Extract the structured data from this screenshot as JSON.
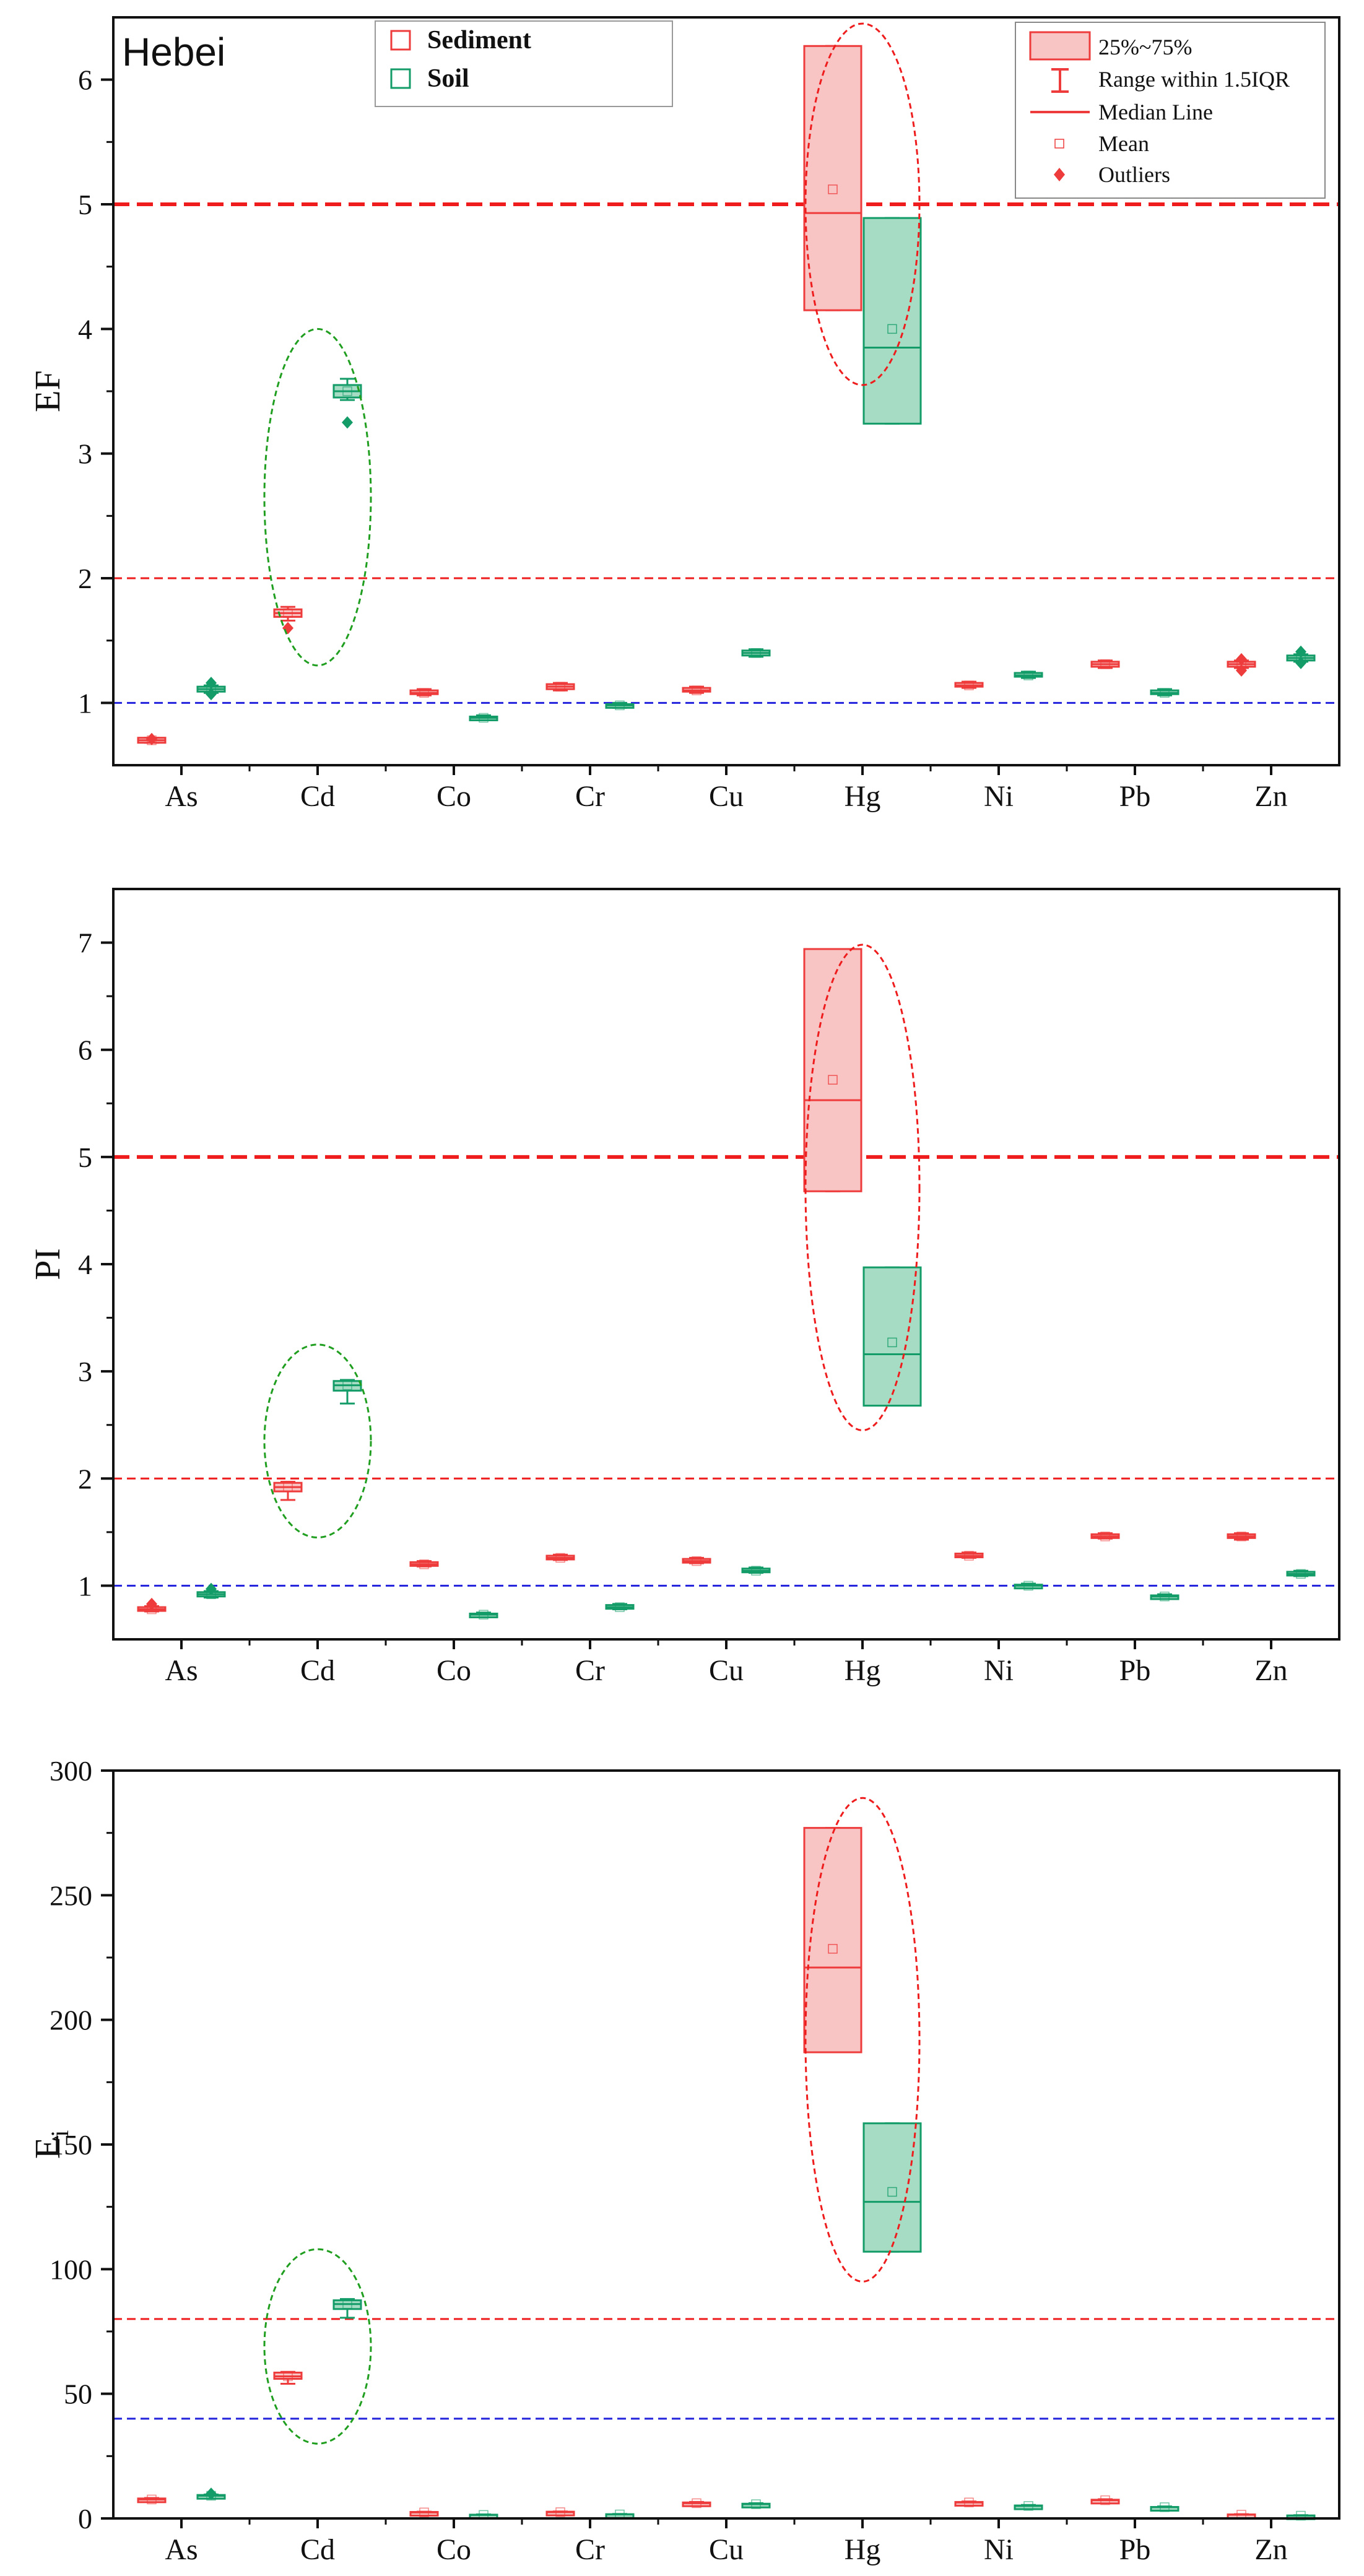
{
  "colors": {
    "sediment_line": "#ee3b3b",
    "sediment_fill": "#f8c4c4",
    "soil_line": "#139c68",
    "soil_fill": "#a6dcc3",
    "ref_red": "#ee1c1c",
    "ref_blue": "#2222dd",
    "ellipse_red": "#ee1c1c",
    "ellipse_green": "#1f9e1f",
    "axis": "#111111"
  },
  "legend_series": {
    "sediment": "Sediment",
    "soil": "Soil"
  },
  "legend_box": {
    "iqr": "25%~75%",
    "whisker": "Range within 1.5IQR",
    "median": "Median Line",
    "mean": "Mean",
    "outliers": "Outliers"
  },
  "chart_data": [
    {
      "type": "box",
      "panel_label": "Hebei",
      "ylabel": "EF",
      "categories": [
        "As",
        "Cd",
        "Co",
        "Cr",
        "Cu",
        "Hg",
        "Ni",
        "Pb",
        "Zn"
      ],
      "ylim": [
        0.5,
        6.5
      ],
      "yticks": [
        1,
        2,
        3,
        4,
        5,
        6
      ],
      "minor_ticks": true,
      "reference_lines": [
        {
          "y": 5,
          "color": "red",
          "style": "dashed-bold"
        },
        {
          "y": 2,
          "color": "red",
          "style": "dashed"
        },
        {
          "y": 1,
          "color": "blue",
          "style": "dashed"
        }
      ],
      "series": [
        {
          "name": "Sediment",
          "boxes": [
            {
              "q1": 0.68,
              "median": 0.7,
              "q3": 0.72,
              "mean": 0.7,
              "whisker_low": 0.68,
              "whisker_high": 0.72,
              "outliers": [
                0.71
              ]
            },
            {
              "q1": 1.69,
              "median": 1.72,
              "q3": 1.75,
              "mean": 1.72,
              "whisker_low": 1.66,
              "whisker_high": 1.77,
              "outliers": [
                1.6
              ]
            },
            {
              "q1": 1.07,
              "median": 1.08,
              "q3": 1.1,
              "mean": 1.08,
              "whisker_low": 1.06,
              "whisker_high": 1.11,
              "outliers": []
            },
            {
              "q1": 1.11,
              "median": 1.13,
              "q3": 1.15,
              "mean": 1.13,
              "whisker_low": 1.1,
              "whisker_high": 1.16,
              "outliers": []
            },
            {
              "q1": 1.09,
              "median": 1.1,
              "q3": 1.12,
              "mean": 1.1,
              "whisker_low": 1.08,
              "whisker_high": 1.13,
              "outliers": []
            },
            {
              "q1": 4.15,
              "median": 4.93,
              "q3": 6.27,
              "mean": 5.12,
              "whisker_low": 4.15,
              "whisker_high": 6.27,
              "outliers": []
            },
            {
              "q1": 1.13,
              "median": 1.14,
              "q3": 1.16,
              "mean": 1.14,
              "whisker_low": 1.12,
              "whisker_high": 1.17,
              "outliers": []
            },
            {
              "q1": 1.29,
              "median": 1.31,
              "q3": 1.33,
              "mean": 1.31,
              "whisker_low": 1.28,
              "whisker_high": 1.34,
              "outliers": []
            },
            {
              "q1": 1.29,
              "median": 1.31,
              "q3": 1.33,
              "mean": 1.31,
              "whisker_low": 1.28,
              "whisker_high": 1.34,
              "outliers": [
                1.35,
                1.26
              ]
            }
          ]
        },
        {
          "name": "Soil",
          "boxes": [
            {
              "q1": 1.09,
              "median": 1.11,
              "q3": 1.13,
              "mean": 1.11,
              "whisker_low": 1.08,
              "whisker_high": 1.14,
              "outliers": [
                1.16,
                1.07
              ]
            },
            {
              "q1": 3.45,
              "median": 3.5,
              "q3": 3.55,
              "mean": 3.5,
              "whisker_low": 3.43,
              "whisker_high": 3.6,
              "outliers": [
                3.25
              ]
            },
            {
              "q1": 0.87,
              "median": 0.88,
              "q3": 0.89,
              "mean": 0.88,
              "whisker_low": 0.86,
              "whisker_high": 0.9,
              "outliers": []
            },
            {
              "q1": 0.97,
              "median": 0.98,
              "q3": 0.99,
              "mean": 0.98,
              "whisker_low": 0.96,
              "whisker_high": 1.0,
              "outliers": []
            },
            {
              "q1": 1.38,
              "median": 1.4,
              "q3": 1.42,
              "mean": 1.4,
              "whisker_low": 1.37,
              "whisker_high": 1.43,
              "outliers": []
            },
            {
              "q1": 3.24,
              "median": 3.85,
              "q3": 4.89,
              "mean": 4.0,
              "whisker_low": 3.24,
              "whisker_high": 4.89,
              "outliers": []
            },
            {
              "q1": 1.21,
              "median": 1.22,
              "q3": 1.24,
              "mean": 1.22,
              "whisker_low": 1.2,
              "whisker_high": 1.25,
              "outliers": []
            },
            {
              "q1": 1.07,
              "median": 1.08,
              "q3": 1.1,
              "mean": 1.08,
              "whisker_low": 1.06,
              "whisker_high": 1.11,
              "outliers": []
            },
            {
              "q1": 1.34,
              "median": 1.36,
              "q3": 1.38,
              "mean": 1.36,
              "whisker_low": 1.33,
              "whisker_high": 1.39,
              "outliers": [
                1.41,
                1.32
              ]
            }
          ]
        }
      ],
      "ellipses": [
        {
          "category": "Cd",
          "y_range": [
            1.3,
            4.0
          ],
          "color": "green"
        },
        {
          "category": "Hg",
          "y_range": [
            3.55,
            6.45
          ],
          "color": "red"
        }
      ]
    },
    {
      "type": "box",
      "panel_label": "",
      "ylabel": "PI",
      "categories": [
        "As",
        "Cd",
        "Co",
        "Cr",
        "Cu",
        "Hg",
        "Ni",
        "Pb",
        "Zn"
      ],
      "ylim": [
        0.5,
        7.5
      ],
      "yticks": [
        1,
        2,
        3,
        4,
        5,
        6,
        7
      ],
      "minor_ticks": true,
      "reference_lines": [
        {
          "y": 5,
          "color": "red",
          "style": "dashed-bold"
        },
        {
          "y": 2,
          "color": "red",
          "style": "dashed"
        },
        {
          "y": 1,
          "color": "blue",
          "style": "dashed"
        }
      ],
      "series": [
        {
          "name": "Sediment",
          "boxes": [
            {
              "q1": 0.77,
              "median": 0.78,
              "q3": 0.8,
              "mean": 0.78,
              "whisker_low": 0.76,
              "whisker_high": 0.81,
              "outliers": [
                0.83
              ]
            },
            {
              "q1": 1.88,
              "median": 1.92,
              "q3": 1.96,
              "mean": 1.92,
              "whisker_low": 1.8,
              "whisker_high": 1.97,
              "outliers": []
            },
            {
              "q1": 1.19,
              "median": 1.2,
              "q3": 1.22,
              "mean": 1.2,
              "whisker_low": 1.18,
              "whisker_high": 1.23,
              "outliers": []
            },
            {
              "q1": 1.25,
              "median": 1.26,
              "q3": 1.28,
              "mean": 1.26,
              "whisker_low": 1.24,
              "whisker_high": 1.29,
              "outliers": []
            },
            {
              "q1": 1.22,
              "median": 1.23,
              "q3": 1.25,
              "mean": 1.23,
              "whisker_low": 1.21,
              "whisker_high": 1.26,
              "outliers": []
            },
            {
              "q1": 4.68,
              "median": 5.53,
              "q3": 6.94,
              "mean": 5.72,
              "whisker_low": 4.68,
              "whisker_high": 6.94,
              "outliers": []
            },
            {
              "q1": 1.27,
              "median": 1.28,
              "q3": 1.3,
              "mean": 1.28,
              "whisker_low": 1.26,
              "whisker_high": 1.31,
              "outliers": []
            },
            {
              "q1": 1.45,
              "median": 1.46,
              "q3": 1.48,
              "mean": 1.46,
              "whisker_low": 1.44,
              "whisker_high": 1.49,
              "outliers": []
            },
            {
              "q1": 1.45,
              "median": 1.46,
              "q3": 1.48,
              "mean": 1.46,
              "whisker_low": 1.43,
              "whisker_high": 1.49,
              "outliers": []
            }
          ]
        },
        {
          "name": "Soil",
          "boxes": [
            {
              "q1": 0.9,
              "median": 0.92,
              "q3": 0.94,
              "mean": 0.92,
              "whisker_low": 0.89,
              "whisker_high": 0.95,
              "outliers": [
                0.97
              ]
            },
            {
              "q1": 2.82,
              "median": 2.87,
              "q3": 2.91,
              "mean": 2.87,
              "whisker_low": 2.7,
              "whisker_high": 2.92,
              "outliers": []
            },
            {
              "q1": 0.72,
              "median": 0.73,
              "q3": 0.74,
              "mean": 0.73,
              "whisker_low": 0.71,
              "whisker_high": 0.75,
              "outliers": []
            },
            {
              "q1": 0.79,
              "median": 0.8,
              "q3": 0.82,
              "mean": 0.8,
              "whisker_low": 0.78,
              "whisker_high": 0.83,
              "outliers": []
            },
            {
              "q1": 1.13,
              "median": 1.14,
              "q3": 1.16,
              "mean": 1.14,
              "whisker_low": 1.12,
              "whisker_high": 1.17,
              "outliers": []
            },
            {
              "q1": 2.68,
              "median": 3.16,
              "q3": 3.97,
              "mean": 3.27,
              "whisker_low": 2.68,
              "whisker_high": 3.97,
              "outliers": []
            },
            {
              "q1": 0.99,
              "median": 1.0,
              "q3": 1.01,
              "mean": 1.0,
              "whisker_low": 0.98,
              "whisker_high": 1.02,
              "outliers": []
            },
            {
              "q1": 0.89,
              "median": 0.9,
              "q3": 0.91,
              "mean": 0.9,
              "whisker_low": 0.88,
              "whisker_high": 0.92,
              "outliers": []
            },
            {
              "q1": 1.1,
              "median": 1.11,
              "q3": 1.13,
              "mean": 1.11,
              "whisker_low": 1.09,
              "whisker_high": 1.14,
              "outliers": []
            }
          ]
        }
      ],
      "ellipses": [
        {
          "category": "Cd",
          "y_range": [
            1.45,
            3.25
          ],
          "color": "green"
        },
        {
          "category": "Hg",
          "y_range": [
            2.45,
            6.98
          ],
          "color": "red"
        }
      ]
    },
    {
      "type": "box",
      "panel_label": "",
      "ylabel": "E",
      "ylabel_sub": "i",
      "categories": [
        "As",
        "Cd",
        "Co",
        "Cr",
        "Cu",
        "Hg",
        "Ni",
        "Pb",
        "Zn"
      ],
      "ylim": [
        0,
        300
      ],
      "yticks": [
        0,
        50,
        100,
        150,
        200,
        250,
        300
      ],
      "minor_ticks": true,
      "reference_lines": [
        {
          "y": 80,
          "color": "red",
          "style": "dashed"
        },
        {
          "y": 40,
          "color": "blue",
          "style": "dashed"
        }
      ],
      "series": [
        {
          "name": "Sediment",
          "boxes": [
            {
              "q1": 7.2,
              "median": 7.6,
              "q3": 8.0,
              "mean": 7.6,
              "whisker_low": 7.0,
              "whisker_high": 8.2,
              "outliers": []
            },
            {
              "q1": 56.0,
              "median": 57.0,
              "q3": 58.5,
              "mean": 57.0,
              "whisker_low": 54.0,
              "whisker_high": 58.8,
              "outliers": []
            },
            {
              "q1": 2.2,
              "median": 2.4,
              "q3": 2.6,
              "mean": 2.4,
              "whisker_low": 2.0,
              "whisker_high": 2.7,
              "outliers": []
            },
            {
              "q1": 2.3,
              "median": 2.5,
              "q3": 2.7,
              "mean": 2.5,
              "whisker_low": 2.1,
              "whisker_high": 2.8,
              "outliers": []
            },
            {
              "q1": 5.8,
              "median": 6.1,
              "q3": 6.4,
              "mean": 6.1,
              "whisker_low": 5.6,
              "whisker_high": 6.6,
              "outliers": []
            },
            {
              "q1": 187.0,
              "median": 221.0,
              "q3": 277.0,
              "mean": 228.5,
              "whisker_low": 187.0,
              "whisker_high": 277.0,
              "outliers": []
            },
            {
              "q1": 6.2,
              "median": 6.4,
              "q3": 6.6,
              "mean": 6.4,
              "whisker_low": 6.0,
              "whisker_high": 6.8,
              "outliers": []
            },
            {
              "q1": 7.1,
              "median": 7.3,
              "q3": 7.5,
              "mean": 7.3,
              "whisker_low": 6.9,
              "whisker_high": 7.7,
              "outliers": []
            },
            {
              "q1": 1.4,
              "median": 1.5,
              "q3": 1.6,
              "mean": 1.5,
              "whisker_low": 1.3,
              "whisker_high": 1.7,
              "outliers": []
            }
          ]
        },
        {
          "name": "Soil",
          "boxes": [
            {
              "q1": 8.8,
              "median": 9.1,
              "q3": 9.4,
              "mean": 9.1,
              "whisker_low": 8.6,
              "whisker_high": 9.6,
              "outliers": [
                9.9
              ]
            },
            {
              "q1": 84.0,
              "median": 86.0,
              "q3": 87.5,
              "mean": 86.0,
              "whisker_low": 80.5,
              "whisker_high": 88.0,
              "outliers": []
            },
            {
              "q1": 1.3,
              "median": 1.4,
              "q3": 1.5,
              "mean": 1.4,
              "whisker_low": 1.2,
              "whisker_high": 1.6,
              "outliers": []
            },
            {
              "q1": 1.5,
              "median": 1.6,
              "q3": 1.7,
              "mean": 1.6,
              "whisker_low": 1.4,
              "whisker_high": 1.8,
              "outliers": []
            },
            {
              "q1": 5.5,
              "median": 5.7,
              "q3": 5.9,
              "mean": 5.7,
              "whisker_low": 5.3,
              "whisker_high": 6.1,
              "outliers": []
            },
            {
              "q1": 107.0,
              "median": 127.0,
              "q3": 158.5,
              "mean": 131.0,
              "whisker_low": 107.0,
              "whisker_high": 158.5,
              "outliers": []
            },
            {
              "q1": 4.8,
              "median": 5.0,
              "q3": 5.2,
              "mean": 5.0,
              "whisker_low": 4.6,
              "whisker_high": 5.4,
              "outliers": []
            },
            {
              "q1": 4.4,
              "median": 4.5,
              "q3": 4.6,
              "mean": 4.5,
              "whisker_low": 4.2,
              "whisker_high": 4.8,
              "outliers": []
            },
            {
              "q1": 1.0,
              "median": 1.1,
              "q3": 1.2,
              "mean": 1.1,
              "whisker_low": 0.9,
              "whisker_high": 1.3,
              "outliers": []
            }
          ]
        }
      ],
      "ellipses": [
        {
          "category": "Cd",
          "y_range": [
            30,
            108
          ],
          "color": "green"
        },
        {
          "category": "Hg",
          "y_range": [
            95,
            289
          ],
          "color": "red"
        }
      ]
    }
  ]
}
